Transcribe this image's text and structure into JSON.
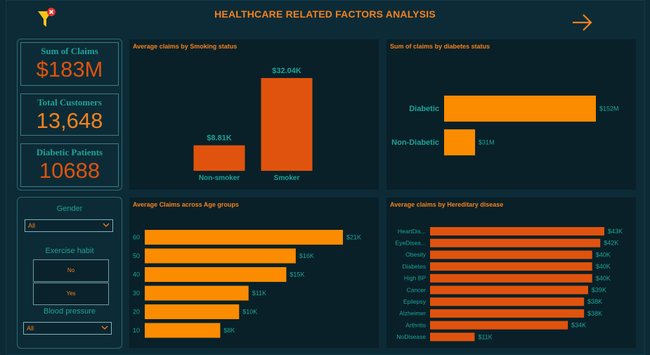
{
  "header": {
    "title": "HEALTHCARE RELATED FACTORS ANALYSIS"
  },
  "icons": {
    "filter": "filter-clear-icon",
    "arrow": "arrow-right-icon"
  },
  "colors": {
    "accent": "#f5821f",
    "deep_orange": "#e0530e",
    "teal": "#1fa39a",
    "background": "#0d2b36"
  },
  "kpis": [
    {
      "label": "Sum of Claims",
      "value": "$183M",
      "color": "#e0530e"
    },
    {
      "label": "Total Customers",
      "value": "13,648",
      "color": "#f5821f"
    },
    {
      "label": "Diabetic Patients",
      "value": "10688",
      "color": "#e0530e"
    }
  ],
  "slicers": {
    "gender": {
      "label": "Gender",
      "value": "All"
    },
    "exercise": {
      "label": "Exercise habit",
      "options": [
        "No",
        "Yes"
      ]
    },
    "blood_pressure": {
      "label": "Blood pressure",
      "value": "All"
    }
  },
  "chart_data": [
    {
      "id": "smoking",
      "type": "bar",
      "title": "Average claims by Smoking status",
      "categories": [
        "Non-smoker",
        "Smoker"
      ],
      "values": [
        8.81,
        32.04
      ],
      "labels": [
        "$8.81K",
        "$32.04K"
      ],
      "unit": "K",
      "color": "#e0530e"
    },
    {
      "id": "diabetes",
      "type": "bar",
      "orientation": "horizontal",
      "title": "Sum of claims by  diabetes status",
      "categories": [
        "Diabetic",
        "Non-Diabetic"
      ],
      "values": [
        152,
        31
      ],
      "labels": [
        "$152M",
        "$31M"
      ],
      "unit": "M",
      "color": "#fb8c00"
    },
    {
      "id": "age",
      "type": "bar",
      "orientation": "horizontal",
      "title": "Average Claims across Age groups",
      "categories": [
        "60",
        "50",
        "40",
        "30",
        "20",
        "10"
      ],
      "values": [
        21,
        16,
        15,
        11,
        10,
        8
      ],
      "labels": [
        "$21K",
        "$16K",
        "$15K",
        "$11K",
        "$10K",
        "$8K"
      ],
      "unit": "K",
      "color": "#fb8c00"
    },
    {
      "id": "hereditary",
      "type": "bar",
      "orientation": "horizontal",
      "title": "Average claims by Hereditary disease",
      "categories": [
        "HeartDis...",
        "EyeDisea...",
        "Obesity",
        "Diabetes",
        "High BP",
        "Cancer",
        "Epilepsy",
        "Alzheimer",
        "Arthritis",
        "NoDisease"
      ],
      "values": [
        43,
        42,
        40,
        40,
        40,
        39,
        38,
        38,
        34,
        11
      ],
      "labels": [
        "$43K",
        "$42K",
        "$40K",
        "$40K",
        "$40K",
        "$39K",
        "$38K",
        "$38K",
        "$34K",
        "$11K"
      ],
      "unit": "K",
      "color": "#e0530e"
    }
  ]
}
